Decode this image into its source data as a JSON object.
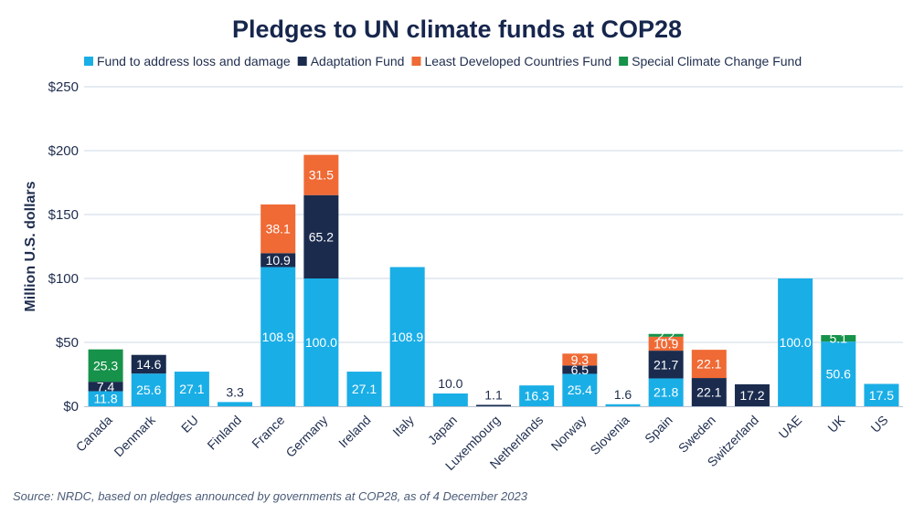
{
  "chart_data": {
    "type": "bar",
    "stacked": true,
    "title": "Pledges to UN climate funds at COP28",
    "ylabel": "Million U.S. dollars",
    "xlabel": "",
    "ylim": [
      0,
      250
    ],
    "yticks": [
      0,
      50,
      100,
      150,
      200,
      250
    ],
    "ytick_labels": [
      "$0",
      "$50",
      "$100",
      "$150",
      "$200",
      "$250"
    ],
    "grid": true,
    "legend_position": "top",
    "categories": [
      "Canada",
      "Denmark",
      "EU",
      "Finland",
      "France",
      "Germany",
      "Ireland",
      "Italy",
      "Japan",
      "Luxembourg",
      "Netherlands",
      "Norway",
      "Slovenia",
      "Spain",
      "Sweden",
      "Switzerland",
      "UAE",
      "UK",
      "US"
    ],
    "series": [
      {
        "name": "Fund to address loss and damage",
        "color": "#1aaee6",
        "values": [
          11.8,
          25.6,
          27.1,
          3.3,
          108.9,
          100.0,
          27.1,
          108.9,
          10.0,
          0,
          16.3,
          25.4,
          1.6,
          21.8,
          0,
          0,
          100.0,
          50.6,
          17.5
        ]
      },
      {
        "name": "Adaptation Fund",
        "color": "#1a2b4e",
        "values": [
          7.4,
          14.6,
          0,
          0,
          10.9,
          65.2,
          0,
          0,
          0,
          1.1,
          0,
          6.5,
          0,
          21.7,
          22.1,
          17.2,
          0,
          0,
          0
        ]
      },
      {
        "name": "Least Developed Countries Fund",
        "color": "#ef6a35",
        "values": [
          0,
          0,
          0,
          0,
          38.1,
          31.5,
          0,
          0,
          0,
          0,
          0,
          9.3,
          0,
          10.9,
          22.1,
          0,
          0,
          0,
          0
        ]
      },
      {
        "name": "Special Climate Change Fund",
        "color": "#16924a",
        "values": [
          25.3,
          0,
          0,
          0,
          0,
          0,
          0,
          0,
          0,
          0,
          0,
          0,
          0,
          2.2,
          0,
          0,
          0,
          5.1,
          0
        ]
      }
    ],
    "data_labels": [
      {
        "category": "Canada",
        "series": 0,
        "text": "11.8"
      },
      {
        "category": "Canada",
        "series": 1,
        "text": "7.4"
      },
      {
        "category": "Canada",
        "series": 3,
        "text": "25.3"
      },
      {
        "category": "Denmark",
        "series": 0,
        "text": "25.6"
      },
      {
        "category": "Denmark",
        "series": 1,
        "text": "14.6"
      },
      {
        "category": "EU",
        "series": 0,
        "text": "27.1"
      },
      {
        "category": "Finland",
        "series": 0,
        "text": "3.3"
      },
      {
        "category": "France",
        "series": 0,
        "text": "108.9"
      },
      {
        "category": "France",
        "series": 1,
        "text": "10.9"
      },
      {
        "category": "France",
        "series": 2,
        "text": "38.1"
      },
      {
        "category": "Germany",
        "series": 0,
        "text": "100.0"
      },
      {
        "category": "Germany",
        "series": 1,
        "text": "65.2"
      },
      {
        "category": "Germany",
        "series": 2,
        "text": "31.5"
      },
      {
        "category": "Ireland",
        "series": 0,
        "text": "27.1"
      },
      {
        "category": "Italy",
        "series": 0,
        "text": "108.9"
      },
      {
        "category": "Japan",
        "series": 0,
        "text": "10.0"
      },
      {
        "category": "Luxembourg",
        "series": 1,
        "text": "1.1"
      },
      {
        "category": "Netherlands",
        "series": 0,
        "text": "16.3"
      },
      {
        "category": "Norway",
        "series": 0,
        "text": "25.4"
      },
      {
        "category": "Norway",
        "series": 1,
        "text": "6.5"
      },
      {
        "category": "Norway",
        "series": 2,
        "text": "9.3"
      },
      {
        "category": "Slovenia",
        "series": 0,
        "text": "1.6"
      },
      {
        "category": "Spain",
        "series": 0,
        "text": "21.8"
      },
      {
        "category": "Spain",
        "series": 1,
        "text": "21.7"
      },
      {
        "category": "Spain",
        "series": 2,
        "text": "10.9"
      },
      {
        "category": "Spain",
        "series": 3,
        "text": "2.2"
      },
      {
        "category": "Sweden",
        "series": 1,
        "text": "22.1"
      },
      {
        "category": "Sweden",
        "series": 2,
        "text": "22.1"
      },
      {
        "category": "Switzerland",
        "series": 1,
        "text": "17.2"
      },
      {
        "category": "UAE",
        "series": 0,
        "text": "100.0"
      },
      {
        "category": "UK",
        "series": 0,
        "text": "50.6"
      },
      {
        "category": "UK",
        "series": 3,
        "text": "5.1"
      },
      {
        "category": "US",
        "series": 0,
        "text": "17.5"
      }
    ],
    "source": "Source: NRDC, based on pledges announced by governments at COP28, as of 4 December 2023"
  }
}
